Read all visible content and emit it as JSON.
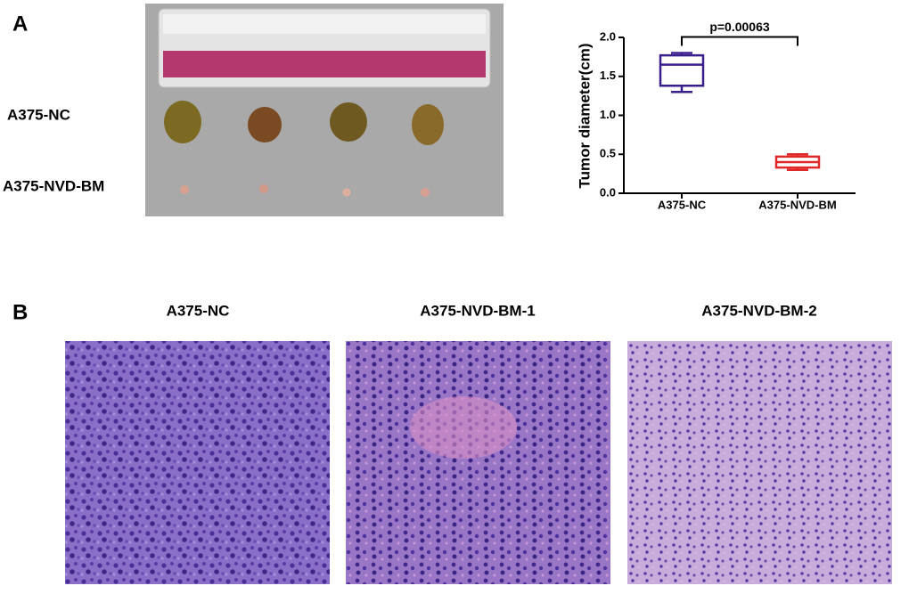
{
  "panels": {
    "a": "A",
    "b": "B"
  },
  "photo": {
    "row_labels": [
      "A375-NC",
      "A375-NVD-BM"
    ]
  },
  "chart_data": {
    "type": "box",
    "y_label": "Tumor diameter(cm)",
    "categories": [
      "A375-NC",
      "A375-NVD-BM"
    ],
    "colors": [
      "#3a1f8c",
      "#e0282a"
    ],
    "boxes": [
      {
        "min": 1.3,
        "q1": 1.38,
        "median": 1.65,
        "q3": 1.77,
        "max": 1.8
      },
      {
        "min": 0.3,
        "q1": 0.33,
        "median": 0.4,
        "q3": 0.47,
        "max": 0.5
      }
    ],
    "ylim": [
      0,
      2
    ],
    "yticks": [
      {
        "value": 0,
        "label": "0.0"
      },
      0.5,
      {
        "value": 1,
        "label": "1.0"
      },
      1.5,
      {
        "value": 2,
        "label": "2.0"
      }
    ],
    "annotation": "p=0.00063"
  },
  "histology": {
    "titles": [
      "A375-NC",
      "A375-NVD-BM-1",
      "A375-NVD-BM-2"
    ]
  }
}
